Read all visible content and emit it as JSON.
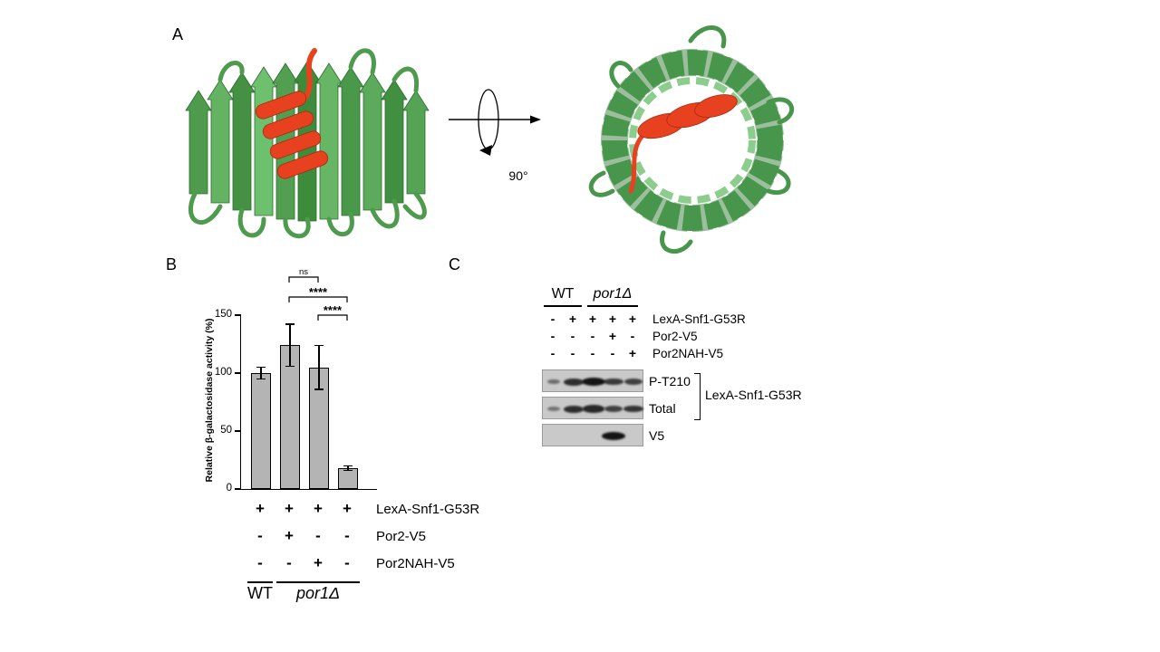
{
  "colors": {
    "barrel_green": "#4e9b4e",
    "helix_red": "#e8411f",
    "bar_fill": "#b4b4b4"
  },
  "panel_a": {
    "label": "A",
    "rotation_label": "90°"
  },
  "panel_b": {
    "label": "B",
    "condition_rows": [
      {
        "label": "LexA-Snf1-G53R",
        "values": [
          "+",
          "+",
          "+",
          "+"
        ]
      },
      {
        "label": "Por2-V5",
        "values": [
          "-",
          "+",
          "-",
          "-"
        ]
      },
      {
        "label": "Por2NAH-V5",
        "values": [
          "-",
          "-",
          "+",
          "-"
        ]
      }
    ],
    "groups": [
      {
        "label": "WT"
      },
      {
        "label": "por1Δ"
      }
    ]
  },
  "panel_c": {
    "label": "C",
    "groups": [
      {
        "label": "WT"
      },
      {
        "label": "por1Δ"
      }
    ],
    "condition_rows": [
      {
        "label": "LexA-Snf1-G53R",
        "values": [
          "-",
          "+",
          "+",
          "+",
          "+"
        ]
      },
      {
        "label": "Por2-V5",
        "values": [
          "-",
          "-",
          "-",
          "+",
          "-"
        ]
      },
      {
        "label": "Por2NAH-V5",
        "values": [
          "-",
          "-",
          "-",
          "-",
          "+"
        ]
      }
    ],
    "blots": [
      {
        "label": "P-T210",
        "bands": [
          0.3,
          0.8,
          1.0,
          0.7,
          0.65
        ]
      },
      {
        "label": "Total",
        "bands": [
          0.25,
          0.8,
          0.85,
          0.65,
          0.75
        ]
      },
      {
        "label": "V5",
        "bands": [
          0,
          0,
          0,
          1.0,
          0
        ]
      }
    ],
    "bracket_label": "LexA-Snf1-G53R"
  },
  "chart_data": {
    "type": "bar",
    "categories": [
      "WT",
      "por1Δ + Por2-V5",
      "por1Δ + Por2NAH-V5",
      "por1Δ"
    ],
    "values": [
      100,
      124,
      105,
      18
    ],
    "errors": [
      5,
      18,
      19,
      2
    ],
    "title": "",
    "xlabel": "",
    "ylabel": "Relative β-galactosidase activity (%)",
    "ylim": [
      0,
      150
    ],
    "yticks": [
      0,
      50,
      100,
      150
    ],
    "grid": false,
    "significance": [
      {
        "label": "ns",
        "from": 2,
        "to": 3
      },
      {
        "label": "****",
        "from": 2,
        "to": 4
      },
      {
        "label": "****",
        "from": 3,
        "to": 4
      }
    ]
  }
}
